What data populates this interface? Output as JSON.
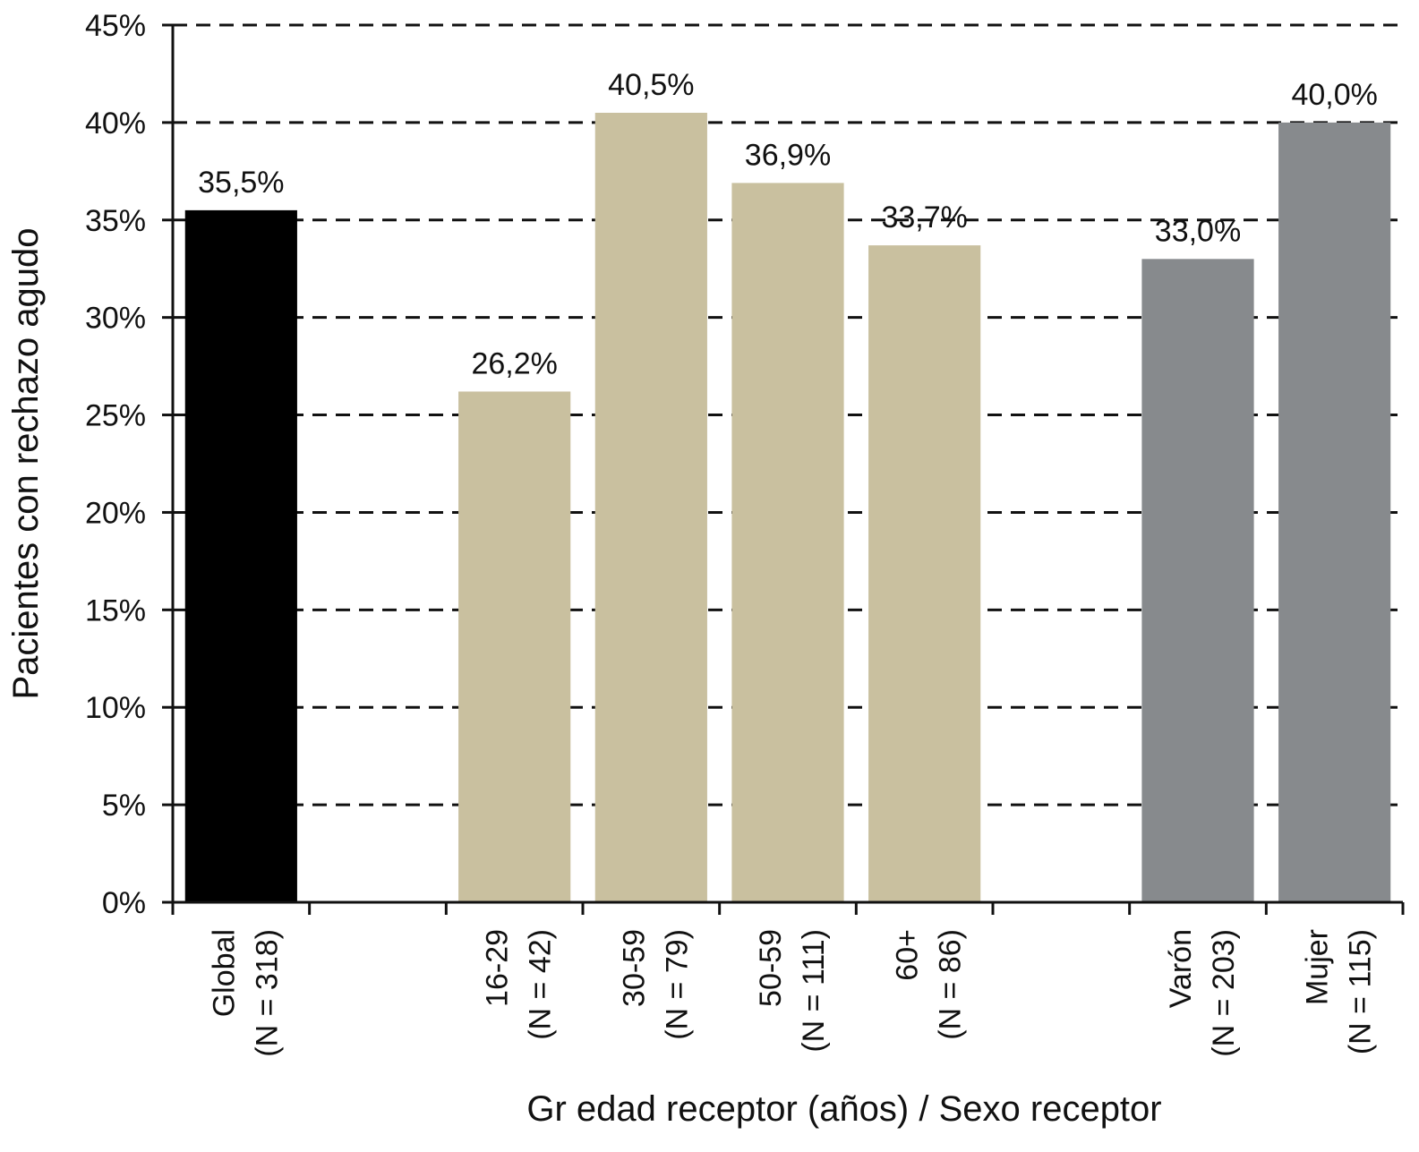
{
  "chart_data": {
    "type": "bar",
    "xlabel": "Gr edad receptor (años) / Sexo receptor",
    "ylabel": "Pacientes con rechazo agudo",
    "ylim": [
      0,
      45
    ],
    "yticks": [
      "0%",
      "5%",
      "10%",
      "15%",
      "20%",
      "25%",
      "30%",
      "35%",
      "40%",
      "45%"
    ],
    "grid": "horizontal dashed",
    "categories": [
      {
        "line1": "Global",
        "line2": "(N = 318)"
      },
      {
        "line1": "",
        "line2": ""
      },
      {
        "line1": "16-29",
        "line2": "(N = 42)"
      },
      {
        "line1": "30-59",
        "line2": "(N = 79)"
      },
      {
        "line1": "50-59",
        "line2": "(N = 111)"
      },
      {
        "line1": "60+",
        "line2": "(N = 86)"
      },
      {
        "line1": "",
        "line2": ""
      },
      {
        "line1": "Varón",
        "line2": "(N = 203)"
      },
      {
        "line1": "Mujer",
        "line2": "(N = 115)"
      }
    ],
    "values": [
      35.5,
      null,
      26.2,
      40.5,
      36.9,
      33.7,
      null,
      33.0,
      40.0
    ],
    "data_labels": [
      "35,5%",
      "",
      "26,2%",
      "40,5%",
      "36,9%",
      "33,7%",
      "",
      "33,0%",
      "40,0%"
    ],
    "bar_colors": [
      "#000000",
      null,
      "#c9c09f",
      "#c9c09f",
      "#c9c09f",
      "#c9c09f",
      null,
      "#878a8d",
      "#878a8d"
    ]
  }
}
